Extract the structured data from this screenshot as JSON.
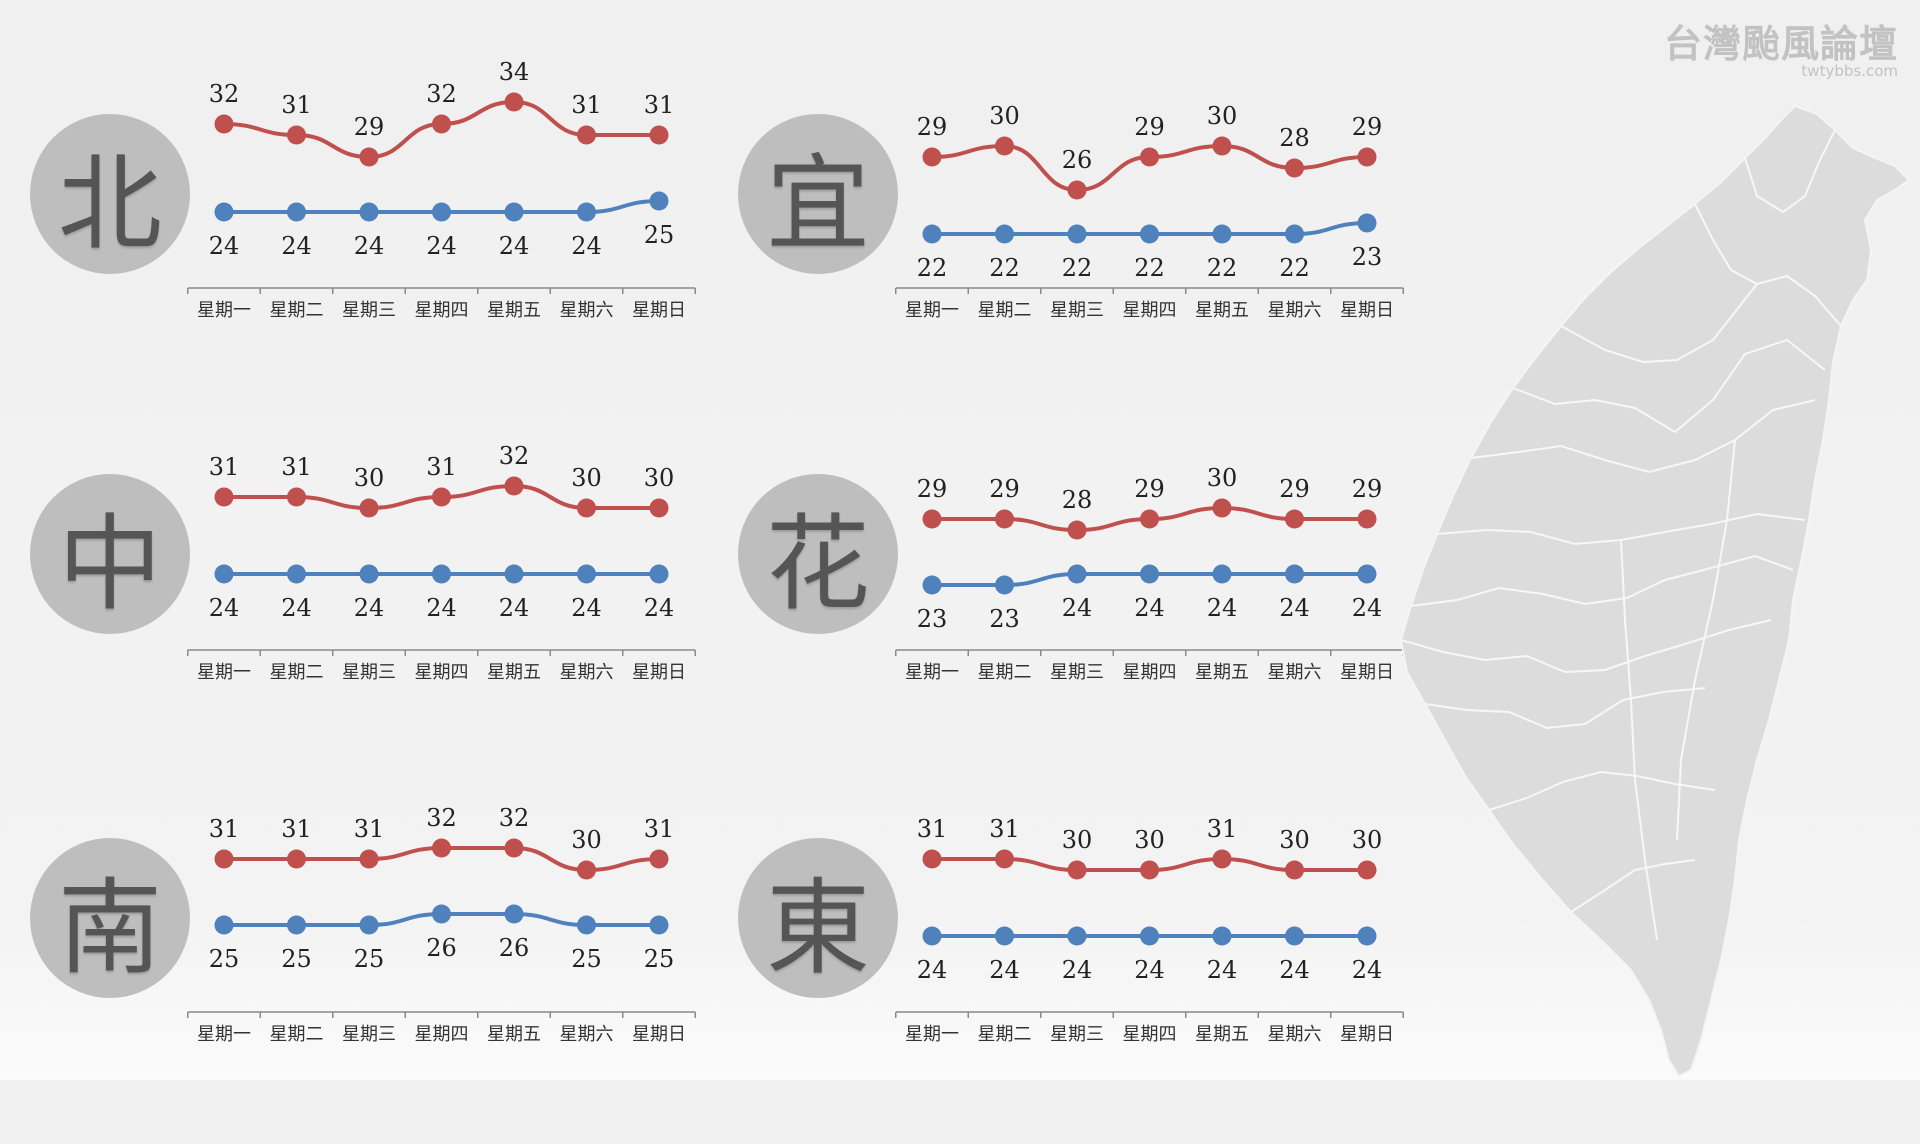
{
  "watermark": {
    "title": "台灣颱風論壇",
    "sub": "twtybbs.com"
  },
  "days": [
    "星期一",
    "星期二",
    "星期三",
    "星期四",
    "星期五",
    "星期六",
    "星期日"
  ],
  "colors": {
    "high": "#c0504d",
    "low": "#4f81bd",
    "badge": "#bebebe",
    "map": "#dcdcdc"
  },
  "chart_data": [
    {
      "type": "line",
      "region": "北",
      "categories": [
        "星期一",
        "星期二",
        "星期三",
        "星期四",
        "星期五",
        "星期六",
        "星期日"
      ],
      "series": [
        {
          "values": [
            32,
            31,
            29,
            32,
            34,
            31,
            31
          ]
        },
        {
          "values": [
            24,
            24,
            24,
            24,
            24,
            24,
            25
          ]
        }
      ]
    },
    {
      "type": "line",
      "region": "宜",
      "categories": [
        "星期一",
        "星期二",
        "星期三",
        "星期四",
        "星期五",
        "星期六",
        "星期日"
      ],
      "series": [
        {
          "values": [
            29,
            30,
            26,
            29,
            30,
            28,
            29
          ]
        },
        {
          "values": [
            22,
            22,
            22,
            22,
            22,
            22,
            23
          ]
        }
      ]
    },
    {
      "type": "line",
      "region": "中",
      "categories": [
        "星期一",
        "星期二",
        "星期三",
        "星期四",
        "星期五",
        "星期六",
        "星期日"
      ],
      "series": [
        {
          "values": [
            31,
            31,
            30,
            31,
            32,
            30,
            30
          ]
        },
        {
          "values": [
            24,
            24,
            24,
            24,
            24,
            24,
            24
          ]
        }
      ]
    },
    {
      "type": "line",
      "region": "花",
      "categories": [
        "星期一",
        "星期二",
        "星期三",
        "星期四",
        "星期五",
        "星期六",
        "星期日"
      ],
      "series": [
        {
          "values": [
            29,
            29,
            28,
            29,
            30,
            29,
            29
          ]
        },
        {
          "values": [
            23,
            23,
            24,
            24,
            24,
            24,
            24
          ]
        }
      ]
    },
    {
      "type": "line",
      "region": "南",
      "categories": [
        "星期一",
        "星期二",
        "星期三",
        "星期四",
        "星期五",
        "星期六",
        "星期日"
      ],
      "series": [
        {
          "values": [
            31,
            31,
            31,
            32,
            32,
            30,
            31
          ]
        },
        {
          "values": [
            25,
            25,
            25,
            26,
            26,
            25,
            25
          ]
        }
      ]
    },
    {
      "type": "line",
      "region": "東",
      "categories": [
        "星期一",
        "星期二",
        "星期三",
        "星期四",
        "星期五",
        "星期六",
        "星期日"
      ],
      "series": [
        {
          "values": [
            31,
            31,
            30,
            30,
            31,
            30,
            30
          ]
        },
        {
          "values": [
            24,
            24,
            24,
            24,
            24,
            24,
            24
          ]
        }
      ]
    }
  ]
}
